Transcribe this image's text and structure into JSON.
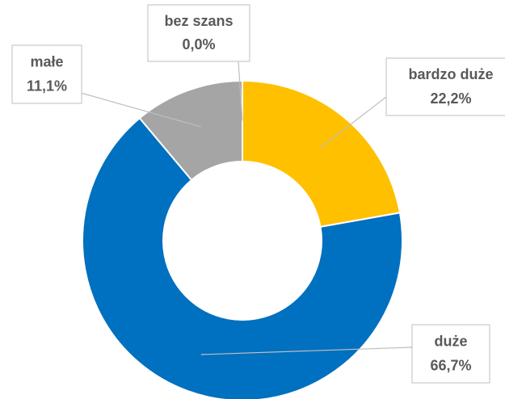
{
  "chart_data": {
    "type": "donut",
    "categories": [
      "bardzo duże",
      "duże",
      "małe",
      "bez szans"
    ],
    "values": [
      22.2,
      66.7,
      11.1,
      0.0
    ],
    "value_labels": [
      "22,2%",
      "66,7%",
      "11,1%",
      "0,0%"
    ],
    "colors": [
      "#ffc000",
      "#0070c0",
      "#a5a5a5",
      "#264478"
    ]
  }
}
